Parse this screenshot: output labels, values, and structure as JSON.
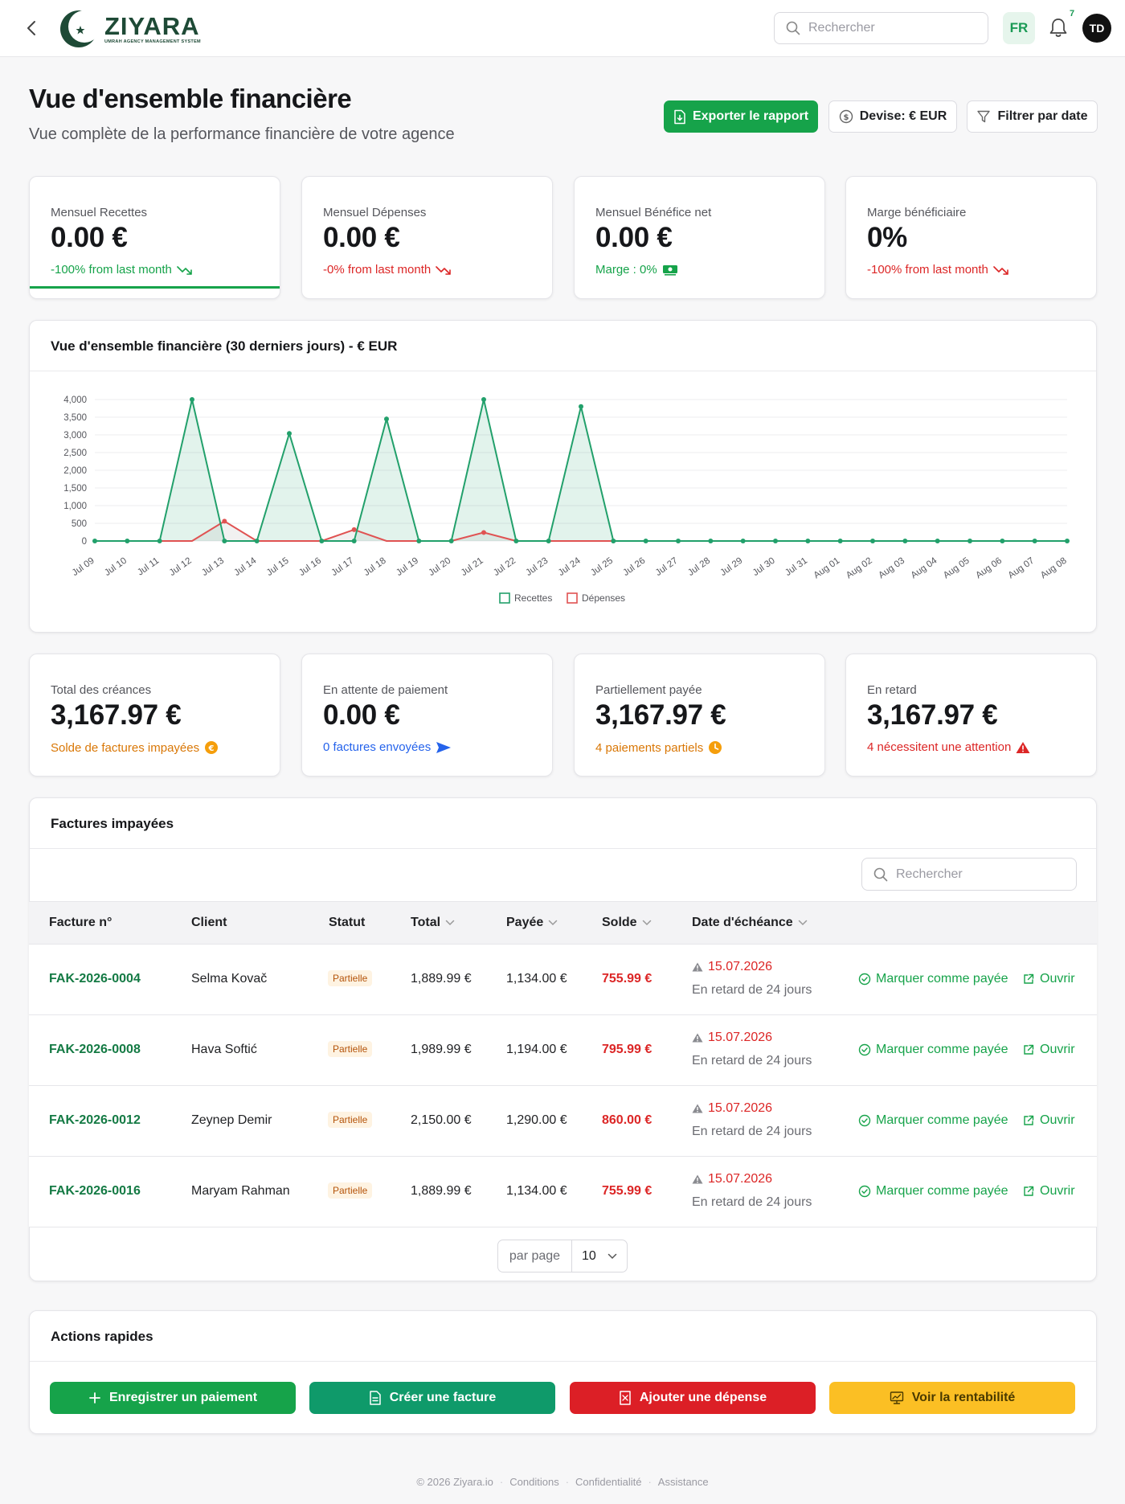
{
  "app": {
    "brand": "ZIYARA",
    "brand_tagline": "UMRAH AGENCY MANAGEMENT SYSTEM",
    "search_placeholder": "Rechercher",
    "language": "FR",
    "notifications_count": "7",
    "avatar_initials": "TD"
  },
  "header": {
    "title": "Vue d'ensemble financière",
    "subtitle": "Vue complète de la performance financière de votre agence",
    "export_label": "Exporter le rapport",
    "currency_label": "Devise: € EUR",
    "filter_label": "Filtrer par date"
  },
  "stats": [
    {
      "label": "Mensuel Recettes",
      "value": "0.00 €",
      "sub": "-100% from last month",
      "sub_icon": "trend-down-icon",
      "color": "#16a34a"
    },
    {
      "label": "Mensuel Dépenses",
      "value": "0.00 €",
      "sub": "-0% from last month",
      "sub_icon": "trend-down-icon",
      "color": "#dc2626"
    },
    {
      "label": "Mensuel Bénéfice net",
      "value": "0.00 €",
      "sub": "Marge : 0%",
      "sub_icon": "money-icon",
      "color": "#16a34a"
    },
    {
      "label": "Marge bénéficiaire",
      "value": "0%",
      "sub": "-100% from last month",
      "sub_icon": "trend-down-icon",
      "color": "#dc2626"
    }
  ],
  "chart": {
    "title": "Vue d'ensemble financière (30 derniers jours) - € EUR"
  },
  "chart_data": {
    "type": "area",
    "categories": [
      "Jul 09",
      "Jul 10",
      "Jul 11",
      "Jul 12",
      "Jul 13",
      "Jul 14",
      "Jul 15",
      "Jul 16",
      "Jul 17",
      "Jul 18",
      "Jul 19",
      "Jul 20",
      "Jul 21",
      "Jul 22",
      "Jul 23",
      "Jul 24",
      "Jul 25",
      "Jul 26",
      "Jul 27",
      "Jul 28",
      "Jul 29",
      "Jul 30",
      "Jul 31",
      "Aug 01",
      "Aug 02",
      "Aug 03",
      "Aug 04",
      "Aug 05",
      "Aug 06",
      "Aug 07",
      "Aug 08"
    ],
    "series": [
      {
        "name": "Recettes",
        "color": "#22a06b",
        "values": [
          0,
          0,
          0,
          4000,
          0,
          0,
          3040,
          0,
          0,
          3450,
          0,
          0,
          4000,
          0,
          0,
          3800,
          0,
          0,
          0,
          0,
          0,
          0,
          0,
          0,
          0,
          0,
          0,
          0,
          0,
          0,
          0
        ]
      },
      {
        "name": "Dépenses",
        "color": "#e05252",
        "values": [
          0,
          0,
          0,
          0,
          560,
          0,
          0,
          0,
          320,
          0,
          0,
          0,
          240,
          0,
          0,
          0,
          0,
          0,
          0,
          0,
          0,
          0,
          0,
          0,
          0,
          0,
          0,
          0,
          0,
          0,
          0
        ]
      }
    ],
    "y_ticks": [
      "0",
      "500",
      "1,000",
      "1,500",
      "2,000",
      "2,500",
      "3,000",
      "3,500",
      "4,000"
    ],
    "ylim": [
      0,
      4000
    ],
    "grid": true,
    "legend_position": "bottom-center"
  },
  "receivables": [
    {
      "label": "Total des créances",
      "value": "3,167.97 €",
      "sub": "Solde de factures impayées",
      "sub_icon": "coin-icon",
      "color": "#d97706"
    },
    {
      "label": "En attente de paiement",
      "value": "0.00 €",
      "sub": "0 factures envoyées",
      "sub_icon": "send-icon",
      "color": "#2563eb"
    },
    {
      "label": "Partiellement payée",
      "value": "3,167.97 €",
      "sub": "4 paiements partiels",
      "sub_icon": "clock-icon",
      "color": "#d97706"
    },
    {
      "label": "En retard",
      "value": "3,167.97 €",
      "sub": "4 nécessitent une attention",
      "sub_icon": "warning-icon",
      "color": "#dc2626"
    }
  ],
  "invoices": {
    "title": "Factures impayées",
    "search_placeholder": "Rechercher",
    "columns": [
      "Facture n°",
      "Client",
      "Statut",
      "Total",
      "Payée",
      "Solde",
      "Date d'échéance"
    ],
    "rows": [
      {
        "number": "FAK-2026-0004",
        "client": "Selma Kovač",
        "status": "Partielle",
        "total": "1,889.99 €",
        "paid": "1,134.00 €",
        "balance": "755.99 €",
        "due": "15.07.2026",
        "overdue": "En retard de 24 jours"
      },
      {
        "number": "FAK-2026-0008",
        "client": "Hava Softić",
        "status": "Partielle",
        "total": "1,989.99 €",
        "paid": "1,194.00 €",
        "balance": "795.99 €",
        "due": "15.07.2026",
        "overdue": "En retard de 24 jours"
      },
      {
        "number": "FAK-2026-0012",
        "client": "Zeynep Demir",
        "status": "Partielle",
        "total": "2,150.00 €",
        "paid": "1,290.00 €",
        "balance": "860.00 €",
        "due": "15.07.2026",
        "overdue": "En retard de 24 jours"
      },
      {
        "number": "FAK-2026-0016",
        "client": "Maryam Rahman",
        "status": "Partielle",
        "total": "1,889.99 €",
        "paid": "1,134.00 €",
        "balance": "755.99 €",
        "due": "15.07.2026",
        "overdue": "En retard de 24 jours"
      }
    ],
    "mark_paid_label": "Marquer comme payée",
    "open_label": "Ouvrir",
    "per_page_label": "par page",
    "per_page_value": "10"
  },
  "quick_actions": {
    "title": "Actions rapides",
    "buttons": [
      {
        "label": "Enregistrer un paiement",
        "color": "#16a34a",
        "icon": "plus-icon"
      },
      {
        "label": "Créer une facture",
        "color": "#0f9a6a",
        "icon": "document-icon"
      },
      {
        "label": "Ajouter une dépense",
        "color": "#dc1f26",
        "icon": "receipt-icon"
      },
      {
        "label": "Voir la rentabilité",
        "color": "#fbbf24",
        "icon": "chart-icon"
      }
    ]
  },
  "footer": {
    "copyright": "© 2026 Ziyara.io",
    "links": [
      "Conditions",
      "Confidentialité",
      "Assistance"
    ]
  }
}
